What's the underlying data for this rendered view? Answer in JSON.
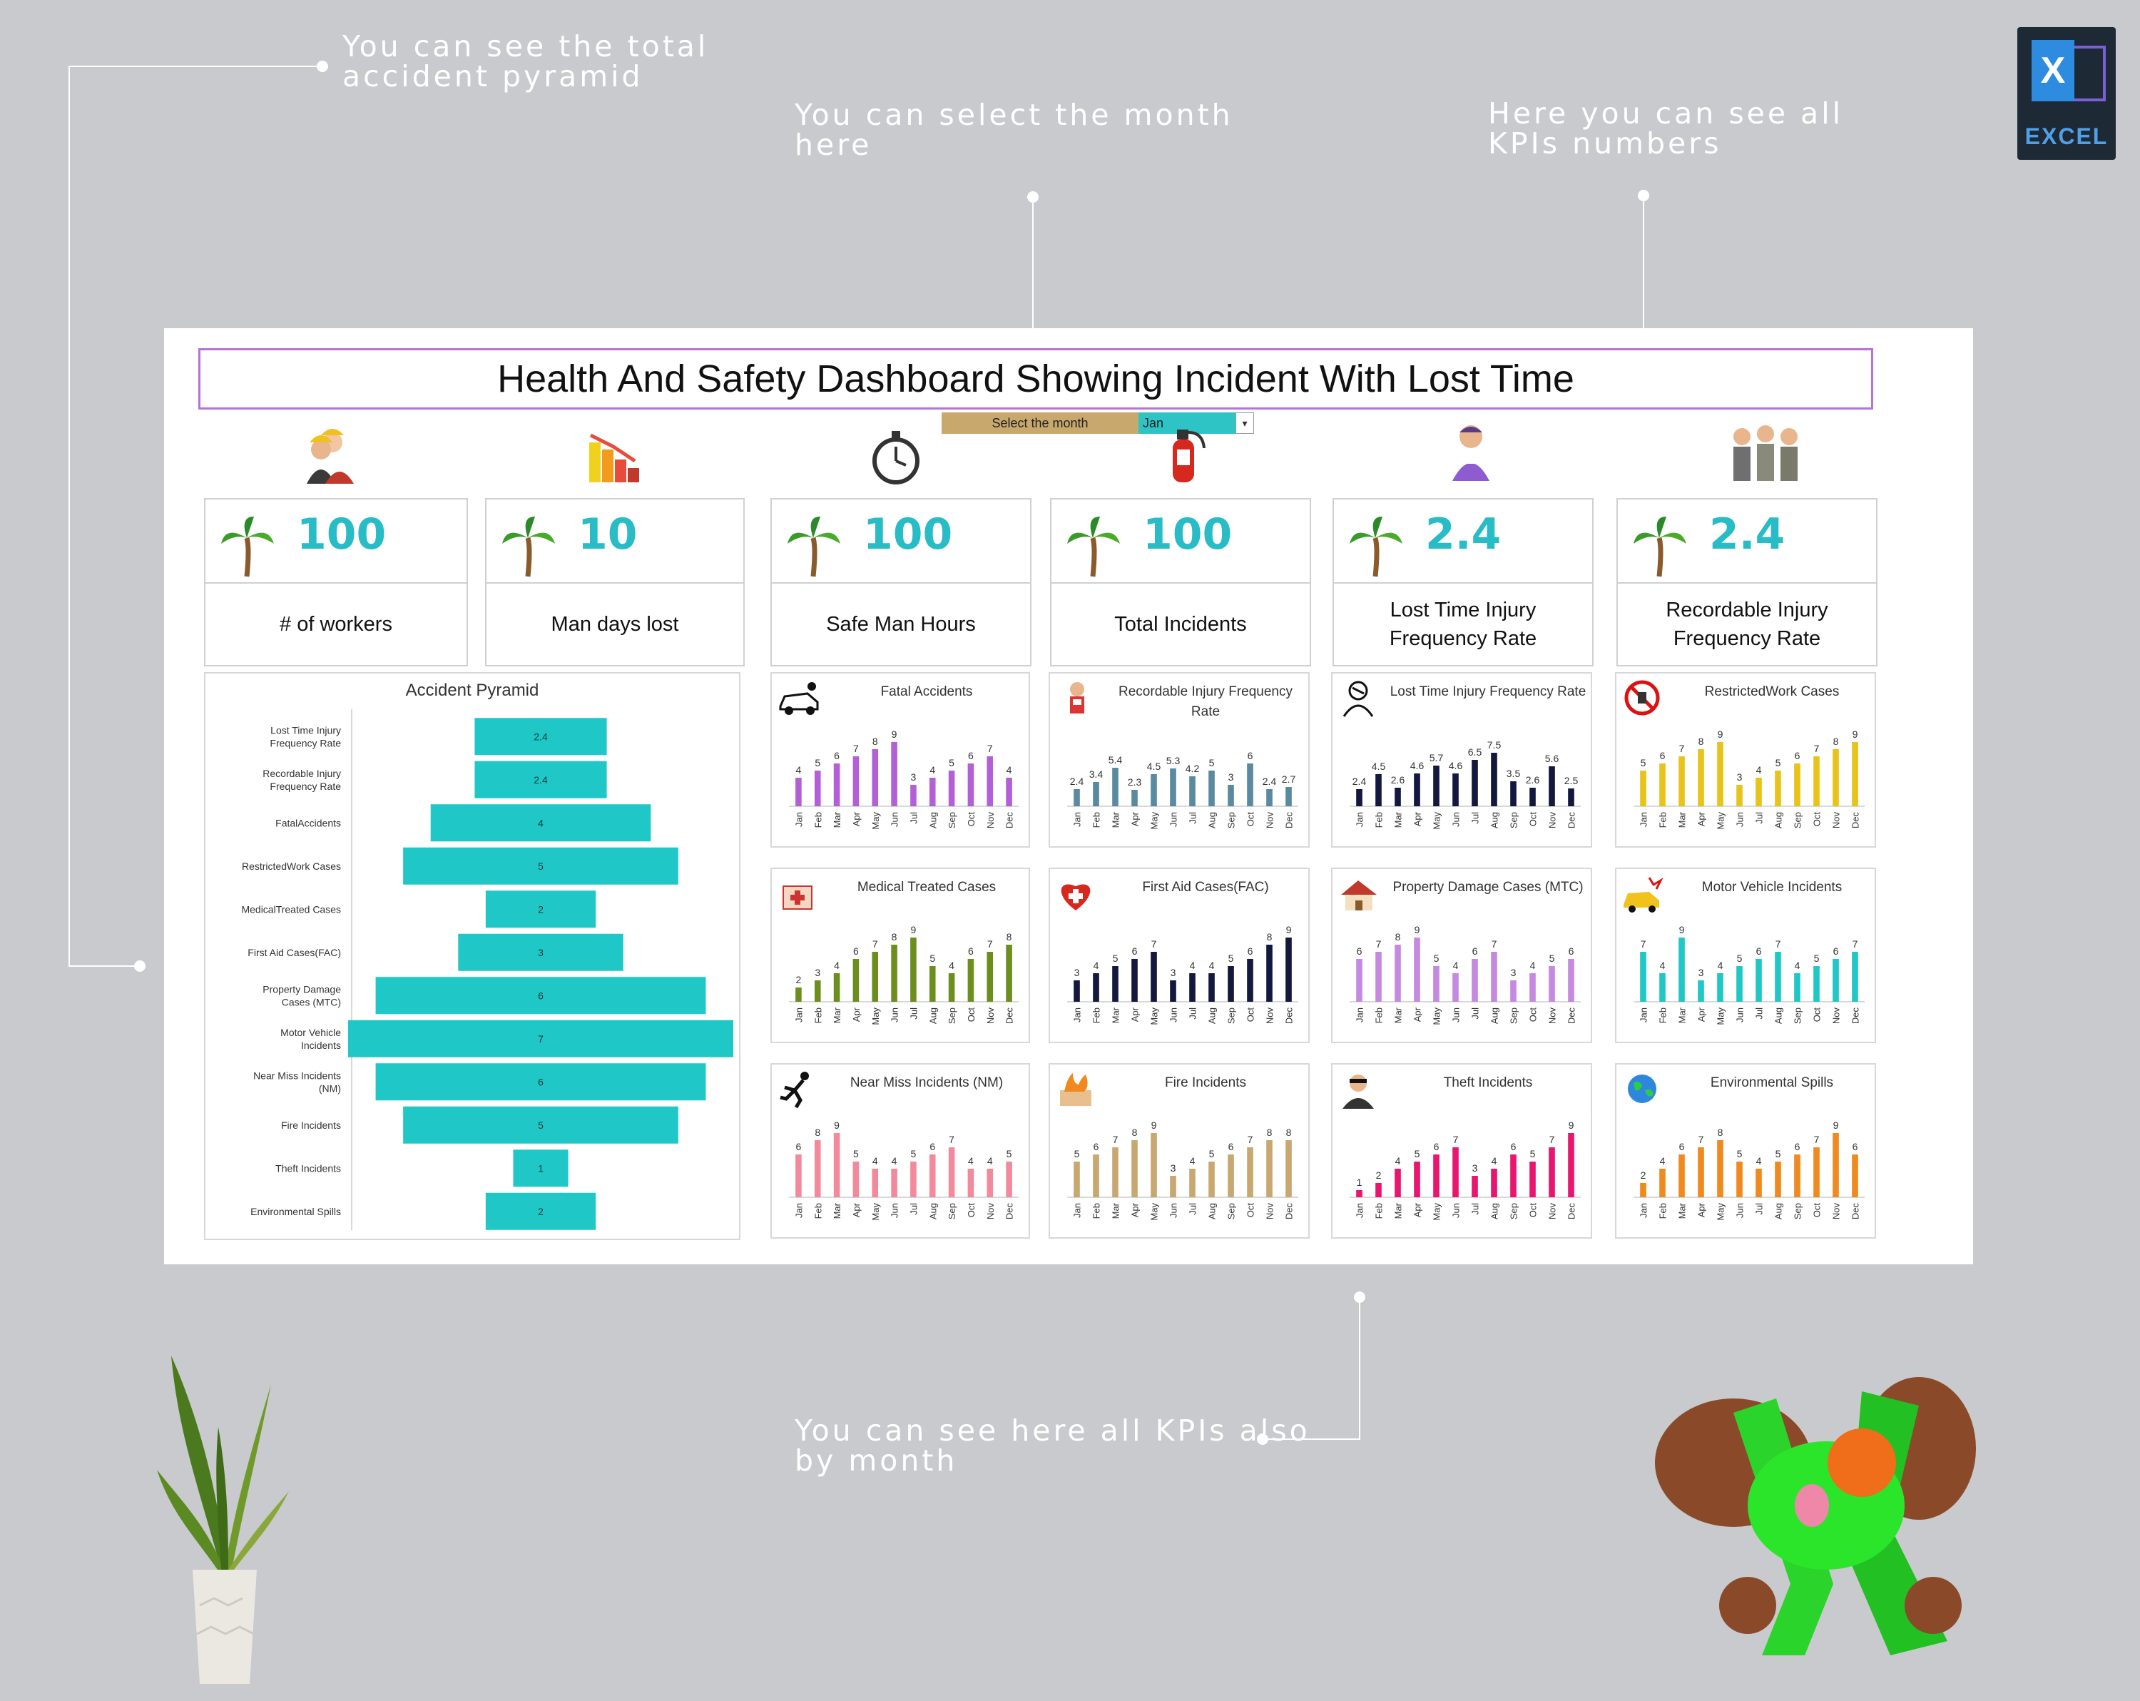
{
  "annotations": {
    "pyramid_note": "You can see the total\naccident pyramid",
    "month_note": "You can select the month\nhere",
    "kpi_note": "Here you can see all\nKPIs numbers",
    "monthly_note": "You can see here all KPIs also\nby month"
  },
  "badge": {
    "label": "EXCEL",
    "letter": "X"
  },
  "dashboard": {
    "title": "Health And Safety Dashboard Showing Incident With Lost Time",
    "month_select": {
      "label": "Select the month",
      "value": "Jan"
    }
  },
  "kpis": [
    {
      "value": "100",
      "label": "# of workers",
      "icon": "workers-icon"
    },
    {
      "value": "10",
      "label": "Man days lost",
      "icon": "bar-chart-icon"
    },
    {
      "value": "100",
      "label": "Safe Man Hours",
      "icon": "stopwatch-icon"
    },
    {
      "value": "100",
      "label": "Total Incidents",
      "icon": "fire-extinguisher-icon"
    },
    {
      "value": "2.4",
      "label": "Lost Time Injury Frequency Rate",
      "icon": "injured-person-icon"
    },
    {
      "value": "2.4",
      "label": "Recordable Injury Frequency Rate",
      "icon": "team-icon"
    }
  ],
  "months": [
    "Jan",
    "Feb",
    "Mar",
    "Apr",
    "May",
    "Jun",
    "Jul",
    "Aug",
    "Sep",
    "Oct",
    "Nov",
    "Dec"
  ],
  "chart_data": [
    {
      "type": "bar",
      "orientation": "horizontal",
      "title": "Accident Pyramid",
      "categories": [
        "Lost Time Injury Frequency Rate",
        "Recordable Injury Frequency Rate",
        "FatalAccidents",
        "RestrictedWork Cases",
        "MedicalTreated Cases",
        "First Aid Cases(FAC)",
        "Property Damage Cases (MTC)",
        "Motor Vehicle Incidents",
        "Near Miss Incidents (NM)",
        "Fire Incidents",
        "Theft Incidents",
        "Environmental Spills"
      ],
      "values": [
        2.4,
        2.4,
        4,
        5,
        2,
        3,
        6,
        7,
        6,
        5,
        1,
        2
      ],
      "color": "#1fc7c7"
    },
    {
      "type": "bar",
      "title": "Fatal Accidents",
      "icon": "car-crash-icon",
      "color": "#b35fd6",
      "values": [
        4,
        5,
        6,
        7,
        8,
        9,
        3,
        4,
        5,
        6,
        7,
        4
      ]
    },
    {
      "type": "bar",
      "title": "Recordable Injury Frequency Rate",
      "icon": "injured-boy-icon",
      "color": "#5a8aa0",
      "values": [
        2.4,
        3.4,
        5.4,
        2.3,
        4.5,
        5.3,
        4.2,
        5,
        3,
        6,
        2.4,
        2.7
      ]
    },
    {
      "type": "bar",
      "title": "Lost Time Injury Frequency Rate",
      "icon": "bandaged-person-icon",
      "color": "#14183f",
      "values": [
        2.4,
        4.5,
        2.6,
        4.6,
        5.7,
        4.6,
        6.5,
        7.5,
        3.5,
        2.6,
        5.6,
        2.5
      ]
    },
    {
      "type": "bar",
      "title": "RestrictedWork Cases",
      "icon": "no-entry-icon",
      "color": "#e8c31a",
      "values": [
        5,
        6,
        7,
        8,
        9,
        3,
        4,
        5,
        6,
        7,
        8,
        9
      ]
    },
    {
      "type": "bar",
      "title": "Medical Treated Cases",
      "icon": "medical-kit-icon",
      "color": "#6b8e1f",
      "values": [
        2,
        3,
        4,
        6,
        7,
        8,
        9,
        5,
        4,
        6,
        7,
        8
      ]
    },
    {
      "type": "bar",
      "title": "First Aid Cases(FAC)",
      "icon": "first-aid-icon",
      "color": "#14183f",
      "values": [
        3,
        4,
        5,
        6,
        7,
        3,
        4,
        4,
        5,
        6,
        8,
        9
      ]
    },
    {
      "type": "bar",
      "title": "Property Damage Cases (MTC)",
      "icon": "damaged-house-icon",
      "color": "#c58ae0",
      "values": [
        6,
        7,
        8,
        9,
        5,
        4,
        6,
        7,
        3,
        4,
        5,
        6
      ]
    },
    {
      "type": "bar",
      "title": "Motor Vehicle Incidents",
      "icon": "car-accident-icon",
      "color": "#1fc7c7",
      "values": [
        7,
        4,
        9,
        3,
        4,
        5,
        6,
        7,
        4,
        5,
        6,
        7
      ]
    },
    {
      "type": "bar",
      "title": "Near Miss Incidents (NM)",
      "icon": "falling-person-icon",
      "color": "#f28a9c",
      "values": [
        6,
        8,
        9,
        5,
        4,
        4,
        5,
        6,
        7,
        4,
        4,
        5
      ]
    },
    {
      "type": "bar",
      "title": "Fire Incidents",
      "icon": "fire-icon",
      "color": "#c8a870",
      "values": [
        5,
        6,
        7,
        8,
        9,
        3,
        4,
        5,
        6,
        7,
        8,
        8
      ]
    },
    {
      "type": "bar",
      "title": "Theft Incidents",
      "icon": "thief-icon",
      "color": "#e8166e",
      "values": [
        1,
        2,
        4,
        5,
        6,
        7,
        3,
        4,
        6,
        5,
        7,
        9
      ]
    },
    {
      "type": "bar",
      "title": "Environmental Spills",
      "icon": "globe-icon",
      "color": "#f08a1e",
      "values": [
        2,
        4,
        6,
        7,
        8,
        5,
        4,
        5,
        6,
        7,
        9,
        6
      ]
    }
  ]
}
